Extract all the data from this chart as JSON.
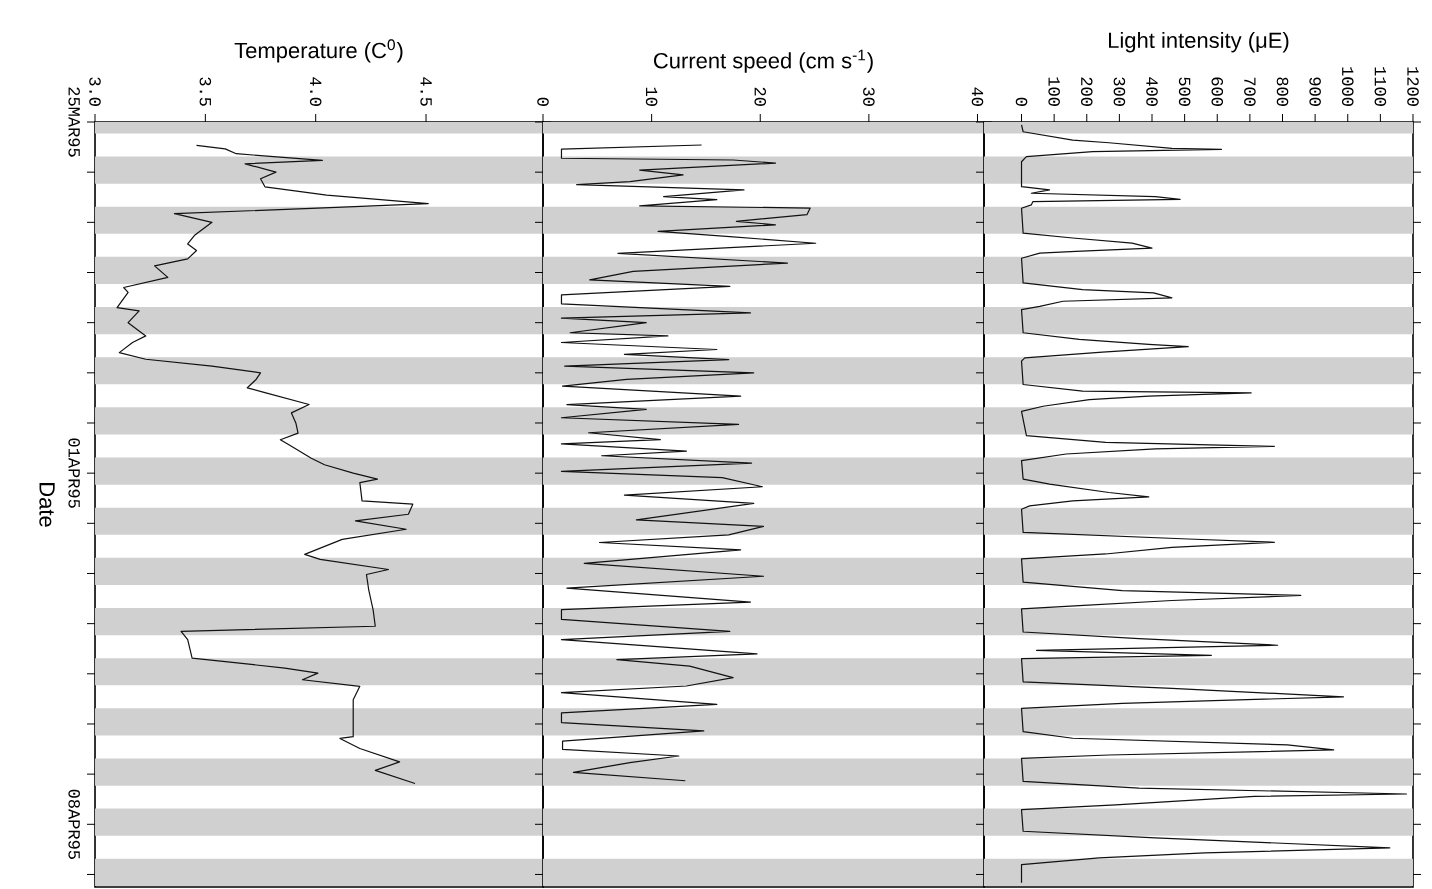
{
  "chart_data": [
    {
      "type": "line",
      "orientation": "horizontal",
      "xlabel": "Temperature (C$^{0}$)",
      "ylabel": "Date",
      "color": "#111111",
      "ylim": [
        "1995-04-09T06:00",
        "1995-03-25"
      ],
      "xlim": [
        3.0,
        5.03
      ],
      "xticks": [
        {
          "value": 3,
          "label": "3.0"
        },
        3.5,
        {
          "value": 4,
          "label": "4.0"
        },
        4.5
      ],
      "yticks": [
        {
          "value": "1995-03-25",
          "label": "25MAR95"
        },
        {
          "value": "1995-03-26",
          "label": null
        },
        {
          "value": "1995-03-27",
          "label": null
        },
        {
          "value": "1995-03-28",
          "label": null
        },
        {
          "value": "1995-03-29",
          "label": null
        },
        {
          "value": "1995-03-30",
          "label": null
        },
        {
          "value": "1995-03-31",
          "label": null
        },
        {
          "value": "1995-04-01",
          "label": "01APR95"
        },
        {
          "value": "1995-04-02",
          "label": null
        },
        {
          "value": "1995-04-03",
          "label": null
        },
        {
          "value": "1995-04-04",
          "label": null
        },
        {
          "value": "1995-04-05",
          "label": null
        },
        {
          "value": "1995-04-06",
          "label": null
        },
        {
          "value": "1995-04-07",
          "label": null
        },
        {
          "value": "1995-04-08",
          "label": "08APR95"
        },
        {
          "value": "1995-04-09",
          "label": null
        }
      ],
      "bands": [
        {
          "axis": "y",
          "from": "1995-03-25",
          "to": "1995-03-25T05:30",
          "color": "#d0d0d0"
        },
        {
          "axis": "y",
          "from": "1995-03-25T16:30",
          "to": "1995-03-26T05:30",
          "color": "#d0d0d0"
        },
        {
          "axis": "y",
          "from": "1995-03-26T16:30",
          "to": "1995-03-27T05:30",
          "color": "#d0d0d0"
        },
        {
          "axis": "y",
          "from": "1995-03-27T16:30",
          "to": "1995-03-28T05:30",
          "color": "#d0d0d0"
        },
        {
          "axis": "y",
          "from": "1995-03-28T16:30",
          "to": "1995-03-29T05:30",
          "color": "#d0d0d0"
        },
        {
          "axis": "y",
          "from": "1995-03-29T16:30",
          "to": "1995-03-30T05:30",
          "color": "#d0d0d0"
        },
        {
          "axis": "y",
          "from": "1995-03-30T16:30",
          "to": "1995-03-31T05:30",
          "color": "#d0d0d0"
        },
        {
          "axis": "y",
          "from": "1995-03-31T16:30",
          "to": "1995-04-01T05:30",
          "color": "#d0d0d0"
        },
        {
          "axis": "y",
          "from": "1995-04-01T16:30",
          "to": "1995-04-02T05:30",
          "color": "#d0d0d0"
        },
        {
          "axis": "y",
          "from": "1995-04-02T16:30",
          "to": "1995-04-03T05:30",
          "color": "#d0d0d0"
        },
        {
          "axis": "y",
          "from": "1995-04-03T16:30",
          "to": "1995-04-04T05:30",
          "color": "#d0d0d0"
        },
        {
          "axis": "y",
          "from": "1995-04-04T16:30",
          "to": "1995-04-05T05:30",
          "color": "#d0d0d0"
        },
        {
          "axis": "y",
          "from": "1995-04-05T16:30",
          "to": "1995-04-06T05:30",
          "color": "#d0d0d0"
        },
        {
          "axis": "y",
          "from": "1995-04-06T16:30",
          "to": "1995-04-07T05:30",
          "color": "#d0d0d0"
        },
        {
          "axis": "y",
          "from": "1995-04-07T16:30",
          "to": "1995-04-08T05:30",
          "color": "#d0d0d0"
        },
        {
          "axis": "y",
          "from": "1995-04-08T16:30",
          "to": "1995-04-09T05:30",
          "color": "#d0d0d0"
        }
      ],
      "x": [
        "1995-03-25T11:10",
        "1995-03-25T12:50",
        "1995-03-25T15:10",
        "1995-03-25T18:20",
        "1995-03-25T20:00",
        "1995-03-26T00:00",
        "1995-03-26T03:10",
        "1995-03-26T07:00",
        "1995-03-26T11:00",
        "1995-03-26T15:00",
        "1995-03-26T17:20",
        "1995-03-26T19:50",
        "1995-03-27T00:00",
        "1995-03-27T06:20",
        "1995-03-27T10:20",
        "1995-03-27T13:30",
        "1995-03-27T17:30",
        "1995-03-27T20:50",
        "1995-03-28T02:20",
        "1995-03-28T07:10",
        "1995-03-28T09:30",
        "1995-03-28T16:50",
        "1995-03-28T18:20",
        "1995-03-29T00:00",
        "1995-03-29T06:20",
        "1995-03-29T09:30",
        "1995-03-29T14:20",
        "1995-03-29T17:30",
        "1995-03-29T20:50",
        "1995-03-30T00:00",
        "1995-03-30T03:10",
        "1995-03-30T07:10",
        "1995-03-30T09:30",
        "1995-03-30T15:10",
        "1995-03-30T19:10",
        "1995-03-31T00:00",
        "1995-03-31T04:50",
        "1995-03-31T08:00",
        "1995-03-31T11:10",
        "1995-03-31T16:50",
        "1995-03-31T20:00",
        "1995-04-01T00:00",
        "1995-04-01T02:50",
        "1995-04-01T04:30",
        "1995-04-01T13:15",
        "1995-04-01T14:50",
        "1995-04-01T19:40",
        "1995-04-01T22:50",
        "1995-04-02T02:50",
        "1995-04-02T07:40",
        "1995-04-02T14:50",
        "1995-04-02T17:15",
        "1995-04-02T22:05",
        "1995-04-03T00:30",
        "1995-04-03T07:40",
        "1995-04-03T17:15",
        "1995-04-04T01:15",
        "1995-04-04T03:40",
        "1995-04-04T07:40",
        "1995-04-04T16:30",
        "1995-04-04T21:15",
        "1995-04-04T23:40",
        "1995-04-05T02:50",
        "1995-04-05T06:00",
        "1995-04-05T12:25",
        "1995-04-06T06:05",
        "1995-04-06T06:55",
        "1995-04-06T11:45",
        "1995-04-06T18:10",
        "1995-04-06T22:10",
        "1995-04-07T04:30"
      ],
      "values": [
        3.46,
        3.59,
        3.64,
        4.03,
        3.68,
        3.82,
        3.75,
        3.77,
        4.05,
        4.51,
        3.98,
        3.36,
        3.53,
        3.45,
        3.42,
        3.46,
        3.42,
        3.27,
        3.33,
        3.13,
        3.15,
        3.1,
        3.2,
        3.15,
        3.23,
        3.17,
        3.11,
        3.23,
        3.53,
        3.75,
        3.73,
        3.69,
        3.77,
        3.97,
        3.89,
        3.91,
        3.92,
        3.84,
        3.89,
        3.98,
        4.04,
        4.17,
        4.28,
        4.2,
        4.21,
        4.44,
        4.42,
        4.18,
        4.41,
        4.12,
        3.95,
        4.02,
        4.33,
        4.23,
        4.24,
        4.26,
        4.27,
        3.39,
        3.42,
        3.44,
        3.86,
        4.01,
        3.94,
        4.2,
        4.17,
        4.17,
        4.11,
        4.2,
        4.38,
        4.27,
        4.45
      ]
    },
    {
      "type": "line",
      "orientation": "horizontal",
      "xlabel": "Current speed (cm s$^{-1}$)",
      "color": "#111111",
      "tick_labels": "x",
      "ylim": [
        "1995-04-09T06:00",
        "1995-03-25"
      ],
      "xlim": [
        0,
        40.6
      ],
      "xticks": [
        0,
        10,
        20,
        30,
        40
      ],
      "yticks": [
        {
          "value": "1995-03-25",
          "label": null
        },
        {
          "value": "1995-03-26",
          "label": null
        },
        {
          "value": "1995-03-27",
          "label": null
        },
        {
          "value": "1995-03-28",
          "label": null
        },
        {
          "value": "1995-03-29",
          "label": null
        },
        {
          "value": "1995-03-30",
          "label": null
        },
        {
          "value": "1995-03-31",
          "label": null
        },
        {
          "value": "1995-04-01",
          "label": null
        },
        {
          "value": "1995-04-02",
          "label": null
        },
        {
          "value": "1995-04-03",
          "label": null
        },
        {
          "value": "1995-04-04",
          "label": null
        },
        {
          "value": "1995-04-05",
          "label": null
        },
        {
          "value": "1995-04-06",
          "label": null
        },
        {
          "value": "1995-04-07",
          "label": null
        },
        {
          "value": "1995-04-08",
          "label": null
        },
        {
          "value": "1995-04-09",
          "label": null
        }
      ],
      "bands": [
        {
          "axis": "y",
          "from": "1995-03-25",
          "to": "1995-03-25T05:30",
          "color": "#d0d0d0"
        },
        {
          "axis": "y",
          "from": "1995-03-25T16:30",
          "to": "1995-03-26T05:30",
          "color": "#d0d0d0"
        },
        {
          "axis": "y",
          "from": "1995-03-26T16:30",
          "to": "1995-03-27T05:30",
          "color": "#d0d0d0"
        },
        {
          "axis": "y",
          "from": "1995-03-27T16:30",
          "to": "1995-03-28T05:30",
          "color": "#d0d0d0"
        },
        {
          "axis": "y",
          "from": "1995-03-28T16:30",
          "to": "1995-03-29T05:30",
          "color": "#d0d0d0"
        },
        {
          "axis": "y",
          "from": "1995-03-29T16:30",
          "to": "1995-03-30T05:30",
          "color": "#d0d0d0"
        },
        {
          "axis": "y",
          "from": "1995-03-30T16:30",
          "to": "1995-03-31T05:30",
          "color": "#d0d0d0"
        },
        {
          "axis": "y",
          "from": "1995-03-31T16:30",
          "to": "1995-04-01T05:30",
          "color": "#d0d0d0"
        },
        {
          "axis": "y",
          "from": "1995-04-01T16:30",
          "to": "1995-04-02T05:30",
          "color": "#d0d0d0"
        },
        {
          "axis": "y",
          "from": "1995-04-02T16:30",
          "to": "1995-04-03T05:30",
          "color": "#d0d0d0"
        },
        {
          "axis": "y",
          "from": "1995-04-03T16:30",
          "to": "1995-04-04T05:30",
          "color": "#d0d0d0"
        },
        {
          "axis": "y",
          "from": "1995-04-04T16:30",
          "to": "1995-04-05T05:30",
          "color": "#d0d0d0"
        },
        {
          "axis": "y",
          "from": "1995-04-05T16:30",
          "to": "1995-04-06T05:30",
          "color": "#d0d0d0"
        },
        {
          "axis": "y",
          "from": "1995-04-06T16:30",
          "to": "1995-04-07T05:30",
          "color": "#d0d0d0"
        },
        {
          "axis": "y",
          "from": "1995-04-07T16:30",
          "to": "1995-04-08T05:30",
          "color": "#d0d0d0"
        },
        {
          "axis": "y",
          "from": "1995-04-08T16:30",
          "to": "1995-04-09T05:30",
          "color": "#d0d0d0"
        }
      ],
      "x": [
        "1995-03-25T11:00",
        "1995-03-25T13:00",
        "1995-03-25T17:20",
        "1995-03-25T18:10",
        "1995-03-25T19:40",
        "1995-03-25T23:00",
        "1995-03-26T01:20",
        "1995-03-26T04:30",
        "1995-03-26T06:00",
        "1995-03-26T08:30",
        "1995-03-26T11:40",
        "1995-03-26T13:10",
        "1995-03-26T16:10",
        "1995-03-26T17:10",
        "1995-03-26T20:20",
        "1995-03-26T23:30",
        "1995-03-27T01:10",
        "1995-03-27T04:20",
        "1995-03-27T06:50",
        "1995-03-27T10:00",
        "1995-03-27T14:50",
        "1995-03-27T19:30",
        "1995-03-27T23:30",
        "1995-03-28T03:30",
        "1995-03-28T06:40",
        "1995-03-28T10:40",
        "1995-03-28T15:00",
        "1995-03-28T19:20",
        "1995-03-28T21:50",
        "1995-03-29T00:00",
        "1995-03-29T04:50",
        "1995-03-29T06:20",
        "1995-03-29T09:30",
        "1995-03-29T12:50",
        "1995-03-29T15:10",
        "1995-03-29T17:40",
        "1995-03-29T20:50",
        "1995-03-30T00:00",
        "1995-03-30T03:10",
        "1995-03-30T06:20",
        "1995-03-30T11:10",
        "1995-03-30T15:10",
        "1995-03-30T17:30",
        "1995-03-30T21:30",
        "1995-03-31T00:40",
        "1995-03-31T04:40",
        "1995-03-31T08:00",
        "1995-03-31T10:00",
        "1995-03-31T13:30",
        "1995-03-31T15:40",
        "1995-03-31T19:10",
        "1995-03-31T23:10",
        "1995-04-01T02:10",
        "1995-04-01T06:30",
        "1995-04-01T10:30",
        "1995-04-01T14:30",
        "1995-04-01T22:20",
        "1995-04-02T01:30",
        "1995-04-02T05:30",
        "1995-04-02T09:10",
        "1995-04-02T12:40",
        "1995-04-02T19:10",
        "1995-04-03T01:20",
        "1995-04-03T07:00",
        "1995-04-03T13:40",
        "1995-04-03T17:20",
        "1995-04-03T22:00",
        "1995-04-04T03:40",
        "1995-04-04T07:40",
        "1995-04-04T14:30",
        "1995-04-04T17:10",
        "1995-04-04T20:20",
        "1995-04-05T01:50",
        "1995-04-05T05:50",
        "1995-04-05T09:00",
        "1995-04-05T14:40",
        "1995-04-05T18:40",
        "1995-04-05T23:20",
        "1995-04-06T03:20",
        "1995-04-06T08:10",
        "1995-04-06T12:10",
        "1995-04-06T15:20",
        "1995-04-06T18:30",
        "1995-04-06T23:10",
        "1995-04-07T03:10"
      ],
      "values": [
        14.6,
        1.7,
        1.7,
        17.5,
        21.4,
        8.9,
        12.9,
        8.0,
        3.1,
        18.5,
        11.1,
        16.0,
        8.9,
        24.6,
        24.3,
        17.8,
        21.4,
        10.6,
        17.2,
        25.1,
        6.9,
        22.5,
        8.3,
        4.3,
        17.2,
        1.7,
        1.7,
        19.1,
        1.7,
        9.5,
        2.5,
        11.5,
        1.7,
        16.0,
        7.5,
        17.1,
        2.0,
        19.4,
        7.7,
        1.8,
        18.2,
        2.2,
        9.5,
        1.7,
        18.0,
        4.2,
        10.8,
        1.7,
        13.2,
        5.4,
        19.2,
        1.7,
        16.5,
        20.2,
        7.5,
        19.4,
        8.6,
        20.3,
        17.1,
        5.2,
        18.2,
        3.8,
        20.3,
        2.2,
        19.1,
        1.7,
        1.7,
        17.2,
        1.7,
        19.7,
        6.8,
        13.5,
        17.5,
        13.2,
        1.7,
        16.0,
        1.7,
        1.7,
        14.8,
        1.8,
        1.8,
        12.5,
        8.0,
        2.8,
        13.1
      ]
    },
    {
      "type": "line",
      "orientation": "horizontal",
      "xlabel": "Light intensity (μE)",
      "color": "#111111",
      "tick_labels": "x",
      "ylim": [
        "1995-04-09T06:00",
        "1995-03-25"
      ],
      "xlim": [
        -115,
        1200
      ],
      "xticks": [
        0,
        100,
        200,
        300,
        400,
        500,
        600,
        700,
        800,
        900,
        1000,
        1100,
        1200
      ],
      "yticks": [
        {
          "value": "1995-03-25",
          "label": null
        },
        {
          "value": "1995-03-26",
          "label": null
        },
        {
          "value": "1995-03-27",
          "label": null
        },
        {
          "value": "1995-03-28",
          "label": null
        },
        {
          "value": "1995-03-29",
          "label": null
        },
        {
          "value": "1995-03-30",
          "label": null
        },
        {
          "value": "1995-03-31",
          "label": null
        },
        {
          "value": "1995-04-01",
          "label": null
        },
        {
          "value": "1995-04-02",
          "label": null
        },
        {
          "value": "1995-04-03",
          "label": null
        },
        {
          "value": "1995-04-04",
          "label": null
        },
        {
          "value": "1995-04-05",
          "label": null
        },
        {
          "value": "1995-04-06",
          "label": null
        },
        {
          "value": "1995-04-07",
          "label": null
        },
        {
          "value": "1995-04-08",
          "label": null
        },
        {
          "value": "1995-04-09",
          "label": null
        }
      ],
      "bands": [
        {
          "axis": "y",
          "from": "1995-03-25",
          "to": "1995-03-25T05:30",
          "color": "#d0d0d0"
        },
        {
          "axis": "y",
          "from": "1995-03-25T16:30",
          "to": "1995-03-26T05:30",
          "color": "#d0d0d0"
        },
        {
          "axis": "y",
          "from": "1995-03-26T16:30",
          "to": "1995-03-27T05:30",
          "color": "#d0d0d0"
        },
        {
          "axis": "y",
          "from": "1995-03-27T16:30",
          "to": "1995-03-28T05:30",
          "color": "#d0d0d0"
        },
        {
          "axis": "y",
          "from": "1995-03-28T16:30",
          "to": "1995-03-29T05:30",
          "color": "#d0d0d0"
        },
        {
          "axis": "y",
          "from": "1995-03-29T16:30",
          "to": "1995-03-30T05:30",
          "color": "#d0d0d0"
        },
        {
          "axis": "y",
          "from": "1995-03-30T16:30",
          "to": "1995-03-31T05:30",
          "color": "#d0d0d0"
        },
        {
          "axis": "y",
          "from": "1995-03-31T16:30",
          "to": "1995-04-01T05:30",
          "color": "#d0d0d0"
        },
        {
          "axis": "y",
          "from": "1995-04-01T16:30",
          "to": "1995-04-02T05:30",
          "color": "#d0d0d0"
        },
        {
          "axis": "y",
          "from": "1995-04-02T16:30",
          "to": "1995-04-03T05:30",
          "color": "#d0d0d0"
        },
        {
          "axis": "y",
          "from": "1995-04-03T16:30",
          "to": "1995-04-04T05:30",
          "color": "#d0d0d0"
        },
        {
          "axis": "y",
          "from": "1995-04-04T16:30",
          "to": "1995-04-05T05:30",
          "color": "#d0d0d0"
        },
        {
          "axis": "y",
          "from": "1995-04-05T16:30",
          "to": "1995-04-06T05:30",
          "color": "#d0d0d0"
        },
        {
          "axis": "y",
          "from": "1995-04-06T16:30",
          "to": "1995-04-07T05:30",
          "color": "#d0d0d0"
        },
        {
          "axis": "y",
          "from": "1995-04-07T16:30",
          "to": "1995-04-08T05:30",
          "color": "#d0d0d0"
        },
        {
          "axis": "y",
          "from": "1995-04-08T16:30",
          "to": "1995-04-09T05:30",
          "color": "#d0d0d0"
        }
      ],
      "x": [
        "1995-03-25T01:25",
        "1995-03-25T04:40",
        "1995-03-25T08:40",
        "1995-03-25T09:55",
        "1995-03-25T12:35",
        "1995-03-25T13:05",
        "1995-03-25T14:10",
        "1995-03-25T16:35",
        "1995-03-25T19:00",
        "1995-03-26T06:55",
        "1995-03-26T08:30",
        "1995-03-26T10:05",
        "1995-03-26T11:40",
        "1995-03-26T13:00",
        "1995-03-26T14:05",
        "1995-03-26T15:40",
        "1995-03-26T17:15",
        "1995-03-27T05:10",
        "1995-03-27T07:30",
        "1995-03-27T09:55",
        "1995-03-27T12:20",
        "1995-03-27T13:55",
        "1995-03-27T14:45",
        "1995-03-27T17:10",
        "1995-03-28T05:00",
        "1995-03-28T08:10",
        "1995-03-28T09:45",
        "1995-03-28T12:10",
        "1995-03-28T13:45",
        "1995-03-28T16:10",
        "1995-03-28T17:45",
        "1995-03-29T04:50",
        "1995-03-29T08:00",
        "1995-03-29T10:25",
        "1995-03-29T11:30",
        "1995-03-29T14:05",
        "1995-03-29T16:50",
        "1995-03-29T18:25",
        "1995-03-30T05:35",
        "1995-03-30T08:45",
        "1995-03-30T09:35",
        "1995-03-30T11:10",
        "1995-03-30T12:50",
        "1995-03-30T16:00",
        "1995-03-30T18:25",
        "1995-03-31T06:05",
        "1995-03-31T09:15",
        "1995-03-31T11:10",
        "1995-03-31T12:25",
        "1995-03-31T14:50",
        "1995-03-31T18:00",
        "1995-04-01T02:50",
        "1995-04-01T05:15",
        "1995-04-01T09:15",
        "1995-04-01T11:20",
        "1995-04-01T13:15",
        "1995-04-01T15:40",
        "1995-04-01T17:15",
        "1995-04-02T04:20",
        "1995-04-02T07:30",
        "1995-04-02T09:05",
        "1995-04-02T11:30",
        "1995-04-02T14:40",
        "1995-04-02T17:00",
        "1995-04-03T04:10",
        "1995-04-03T08:10",
        "1995-04-03T10:30",
        "1995-04-03T12:55",
        "1995-04-03T15:20",
        "1995-04-03T16:55",
        "1995-04-04T04:00",
        "1995-04-04T07:10",
        "1995-04-04T10:20",
        "1995-04-04T12:45",
        "1995-04-04T15:10",
        "1995-04-04T16:45",
        "1995-04-05T03:50",
        "1995-04-05T07:00",
        "1995-04-05T11:00",
        "1995-04-05T14:10",
        "1995-04-05T16:35",
        "1995-04-06T03:40",
        "1995-04-06T06:50",
        "1995-04-06T10:00",
        "1995-04-06T12:25",
        "1995-04-06T14:50",
        "1995-04-06T16:25",
        "1995-04-07T03:30",
        "1995-04-07T06:40",
        "1995-04-07T09:30",
        "1995-04-07T10:40",
        "1995-04-07T14:40",
        "1995-04-07T17:00",
        "1995-04-08T03:20",
        "1995-04-08T06:30",
        "1995-04-08T11:15",
        "1995-04-08T13:40",
        "1995-04-08T16:05",
        "1995-04-08T19:15",
        "1995-04-09T04:00"
      ],
      "values": [
        0,
        5,
        157,
        268,
        461,
        613,
        218,
        15,
        0,
        0,
        86,
        30,
        410,
        486,
        35,
        30,
        0,
        5,
        157,
        339,
        400,
        167,
        56,
        0,
        5,
        187,
        405,
        461,
        127,
        56,
        0,
        5,
        177,
        390,
        511,
        248,
        10,
        0,
        5,
        187,
        704,
        390,
        208,
        66,
        0,
        15,
        258,
        775,
        410,
        137,
        0,
        5,
        86,
        268,
        390,
        157,
        25,
        0,
        5,
        511,
        775,
        461,
        258,
        0,
        5,
        309,
        856,
        461,
        177,
        0,
        5,
        360,
        785,
        46,
        582,
        0,
        5,
        461,
        987,
        309,
        0,
        5,
        157,
        815,
        957,
        268,
        0,
        5,
        360,
        1180,
        714,
        289,
        0,
        5,
        410,
        1129,
        562,
        238,
        0,
        0
      ]
    }
  ]
}
